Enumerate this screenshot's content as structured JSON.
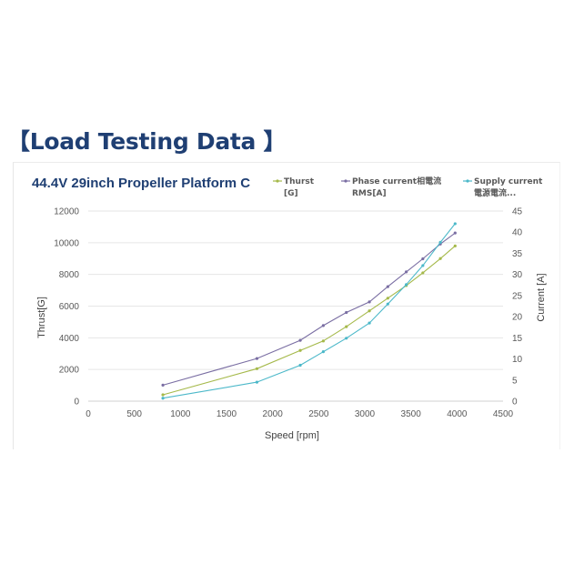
{
  "heading": "【Load Testing Data 】",
  "colors": {
    "heading": "#1f3f73",
    "title": "#1f3f73",
    "thrust": "#a5b94a",
    "phase": "#7a6ea3",
    "supply": "#4bb8c9",
    "grid": "#e6e6e6"
  },
  "chart_data": {
    "type": "line",
    "title": "44.4V 29inch Propeller Platform C",
    "xlabel": "Speed [rpm]",
    "ylabel": "Thrust[G]",
    "y2label": "Current [A]",
    "xlim": [
      0,
      4500
    ],
    "ylim": [
      0,
      12000
    ],
    "y2lim": [
      0,
      45
    ],
    "xticks": [
      "0",
      "500",
      "1000",
      "1500",
      "2000",
      "2500",
      "3000",
      "3500",
      "4000",
      "4500"
    ],
    "yticks": [
      "0",
      "2000",
      "4000",
      "6000",
      "8000",
      "10000",
      "12000"
    ],
    "y2ticks": [
      "0",
      "5",
      "10",
      "15",
      "20",
      "25",
      "30",
      "35",
      "40",
      "45"
    ],
    "grid": "horizontal",
    "legend_position": "top-right",
    "series": [
      {
        "name": "Thurst [G]",
        "axis": "left",
        "x": [
          810,
          1830,
          2300,
          2550,
          2800,
          3050,
          3250,
          3450,
          3630,
          3820,
          3980
        ],
        "y": [
          400,
          2050,
          3200,
          3800,
          4700,
          5700,
          6500,
          7300,
          8100,
          9000,
          9800
        ]
      },
      {
        "name": "Phase current相電流 RMS[A]",
        "axis": "right",
        "x": [
          810,
          1830,
          2300,
          2550,
          2800,
          3050,
          3250,
          3450,
          3630,
          3820,
          3980
        ],
        "y": [
          3.8,
          10.1,
          14.4,
          17.9,
          21.0,
          23.5,
          27.1,
          30.6,
          33.7,
          37.2,
          39.8
        ]
      },
      {
        "name": "Supply current 電源電流...",
        "axis": "right",
        "x": [
          810,
          1830,
          2300,
          2550,
          2800,
          3050,
          3250,
          3450,
          3630,
          3820,
          3980
        ],
        "y": [
          0.7,
          4.5,
          8.5,
          11.7,
          14.9,
          18.5,
          23.0,
          27.6,
          32.1,
          37.6,
          42.0
        ]
      }
    ],
    "legend": [
      {
        "line1": "Thurst",
        "line2": "[G]"
      },
      {
        "line1": "Phase current相電流",
        "line2": "RMS[A]"
      },
      {
        "line1": "Supply current",
        "line2": "電源電流..."
      }
    ]
  }
}
